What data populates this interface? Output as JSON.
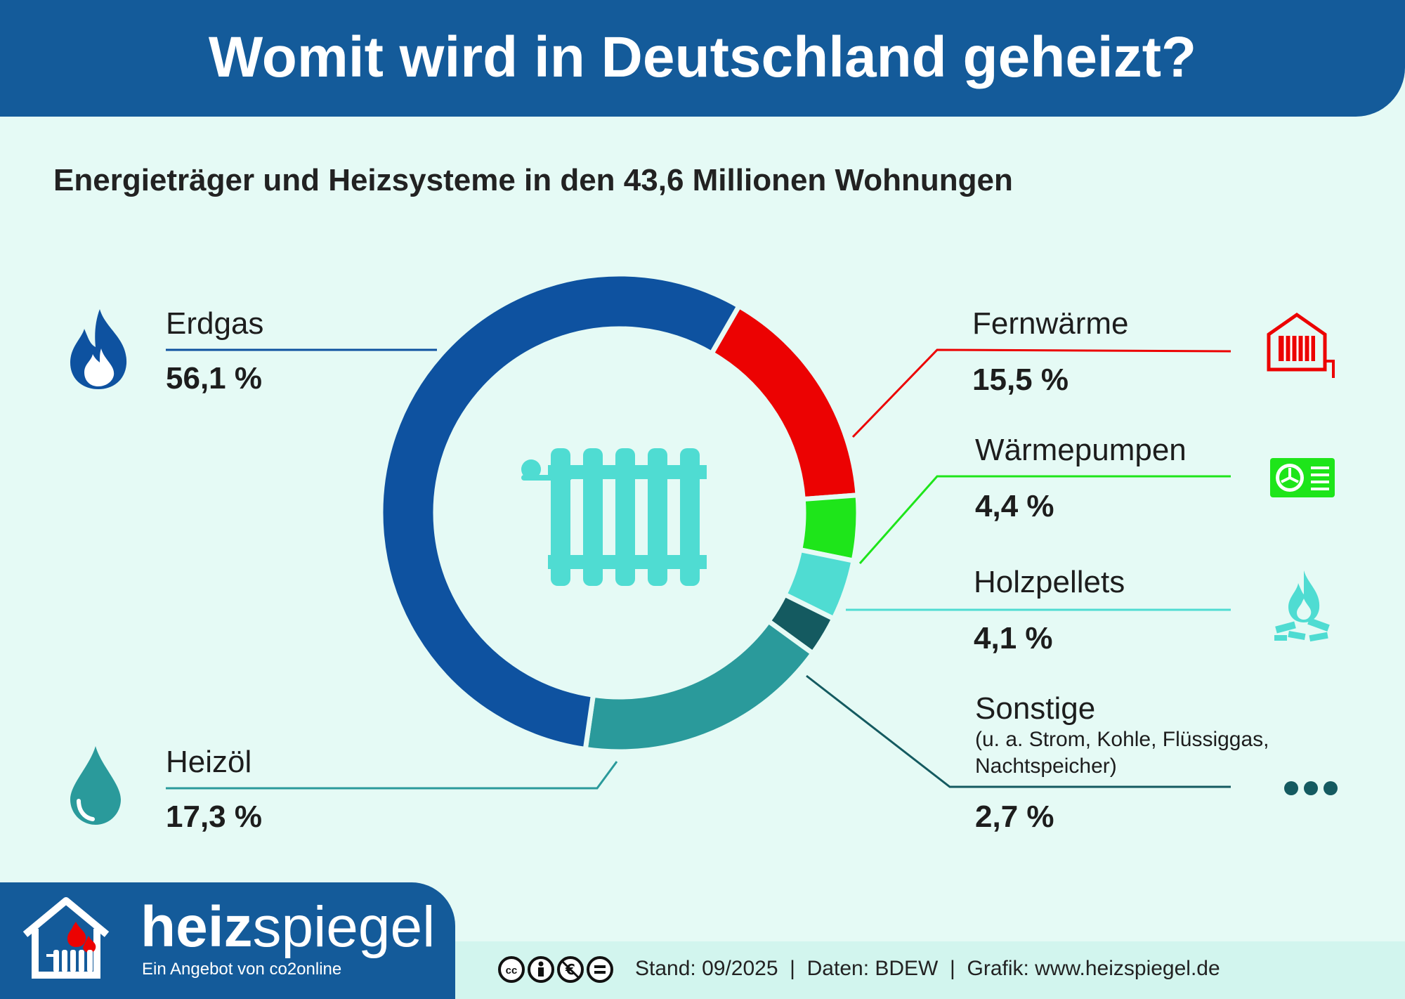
{
  "title": "Womit wird in Deutschland geheizt?",
  "subtitle": "Energieträger und Heizsysteme in den 43,6 Millionen Wohnungen",
  "chart_data": {
    "type": "pie",
    "variant": "donut",
    "unit": "%",
    "categories": [
      "Erdgas",
      "Fernwärme",
      "Wärmepumpen",
      "Holzpellets",
      "Sonstige",
      "Heizöl"
    ],
    "values": [
      56.1,
      15.5,
      4.4,
      4.1,
      2.7,
      17.3
    ],
    "value_labels": [
      "56,1 %",
      "15,5 %",
      "4,4 %",
      "4,1 %",
      "2,7 %",
      "17,3 %"
    ],
    "colors": [
      "#0e52a0",
      "#ec0202",
      "#1ee51a",
      "#4fdcd2",
      "#145a60",
      "#2a9a9b"
    ],
    "icons": [
      "flame-icon",
      "district-heating-icon",
      "heat-pump-icon",
      "pellet-fire-icon",
      "more-dots-icon",
      "oil-drop-icon"
    ],
    "center_icon": "radiator-icon",
    "notes": {
      "Sonstige": "(u. a. Strom, Kohle, Flüssiggas, Nachtspeicher)"
    }
  },
  "footer": {
    "brand_bold": "heiz",
    "brand_light": "spiegel",
    "brand_sub": "Ein Angebot von co2online",
    "credit": "Stand: 09/2025  |  Daten: BDEW  |  Grafik: www.heizspiegel.de",
    "license_icons": [
      "cc-icon",
      "by-icon",
      "nc-icon",
      "nd-icon"
    ]
  }
}
